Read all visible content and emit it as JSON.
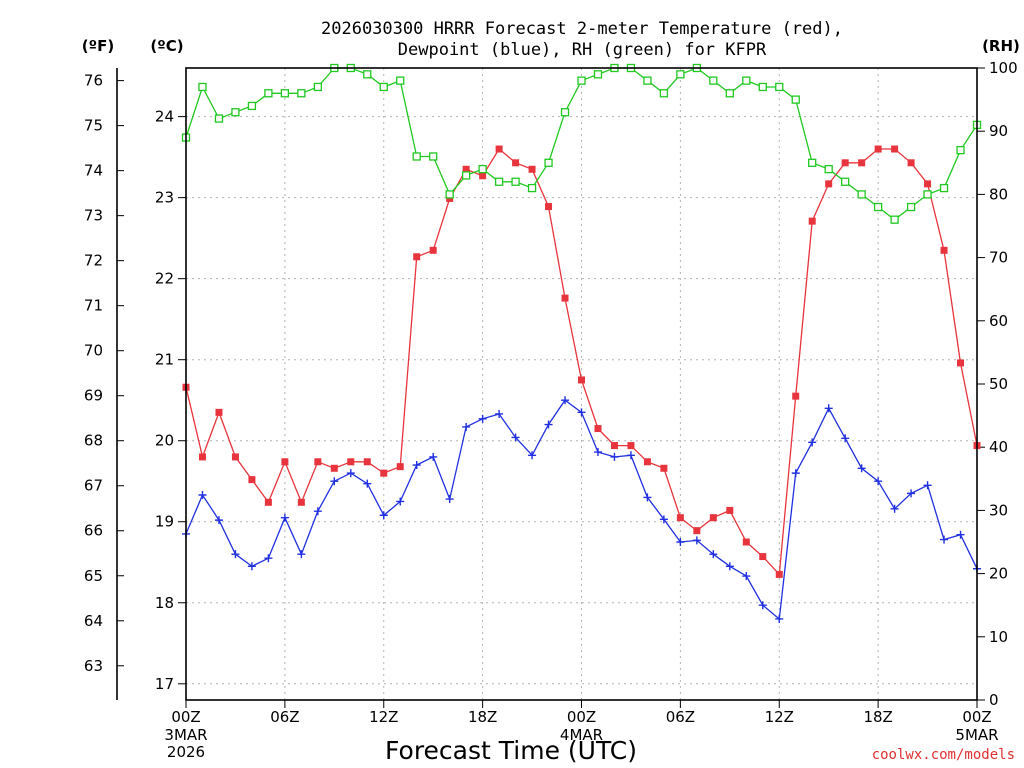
{
  "chart_data": {
    "type": "line",
    "title_line1": "2026030300 HRRR Forecast 2-meter Temperature (red),",
    "title_line2": "Dewpoint (blue), RH (green) for KFPR",
    "unit_f": "(ºF)",
    "unit_c": "(ºC)",
    "unit_rh": "(RH)",
    "xlabel": "Forecast Time (UTC)",
    "credit": "coolwx.com/models",
    "x_ticks": [
      {
        "h": 0,
        "label": "00Z",
        "sub": [
          "3MAR",
          "2026"
        ]
      },
      {
        "h": 6,
        "label": "06Z",
        "sub": []
      },
      {
        "h": 12,
        "label": "12Z",
        "sub": []
      },
      {
        "h": 18,
        "label": "18Z",
        "sub": []
      },
      {
        "h": 24,
        "label": "00Z",
        "sub": [
          "4MAR"
        ]
      },
      {
        "h": 30,
        "label": "06Z",
        "sub": []
      },
      {
        "h": 36,
        "label": "12Z",
        "sub": []
      },
      {
        "h": 42,
        "label": "18Z",
        "sub": []
      },
      {
        "h": 48,
        "label": "00Z",
        "sub": [
          "5MAR"
        ]
      }
    ],
    "xlim_hours": [
      0,
      48
    ],
    "y_celsius": {
      "range": [
        16.8,
        24.6
      ],
      "ticks": [
        "17",
        "18",
        "19",
        "20",
        "21",
        "22",
        "23",
        "24"
      ]
    },
    "y_fahrenheit": {
      "ticks": [
        "63",
        "64",
        "65",
        "66",
        "67",
        "68",
        "69",
        "70",
        "71",
        "72",
        "73",
        "74",
        "75",
        "76"
      ]
    },
    "y_rh": {
      "range": [
        0,
        100
      ],
      "ticks": [
        "0",
        "10",
        "20",
        "30",
        "40",
        "50",
        "60",
        "70",
        "80",
        "90",
        "100"
      ]
    },
    "grid": true,
    "series": [
      {
        "name": "2-meter Temperature (red)",
        "unit": "°C",
        "color": "#e8343c",
        "marker": "filled-square",
        "values": [
          20.66,
          19.8,
          20.35,
          19.8,
          19.52,
          19.24,
          19.74,
          19.24,
          19.74,
          19.66,
          19.74,
          19.74,
          19.6,
          19.68,
          22.27,
          22.35,
          22.99,
          23.35,
          23.27,
          23.6,
          23.43,
          23.35,
          22.89,
          21.76,
          20.75,
          20.15,
          19.94,
          19.94,
          19.74,
          19.66,
          19.05,
          18.89,
          19.05,
          19.14,
          18.75,
          18.57,
          18.35,
          20.55,
          22.71,
          23.17,
          23.43,
          23.43,
          23.6,
          23.6,
          23.43,
          23.17,
          22.35,
          20.96,
          19.94
        ]
      },
      {
        "name": "Dewpoint (blue)",
        "unit": "°C",
        "color": "#2030e0",
        "marker": "plus",
        "values": [
          18.85,
          19.33,
          19.02,
          18.6,
          18.45,
          18.55,
          19.05,
          18.6,
          19.13,
          19.5,
          19.6,
          19.47,
          19.08,
          19.25,
          19.7,
          19.8,
          19.28,
          20.17,
          20.27,
          20.33,
          20.04,
          19.82,
          20.2,
          20.5,
          20.35,
          19.86,
          19.8,
          19.82,
          19.3,
          19.03,
          18.75,
          18.77,
          18.6,
          18.45,
          18.33,
          17.97,
          17.8,
          19.6,
          19.98,
          20.4,
          20.03,
          19.66,
          19.5,
          19.16,
          19.35,
          19.45,
          18.78,
          18.84,
          18.42
        ]
      },
      {
        "name": "RH (green)",
        "unit": "%",
        "color": "#20c820",
        "marker": "open-square",
        "values": [
          89,
          97,
          92,
          93,
          94,
          96,
          96,
          96,
          97,
          100,
          100,
          99,
          97,
          98,
          86,
          86,
          80,
          83,
          84,
          82,
          82,
          81,
          85,
          93,
          98,
          99,
          100,
          100,
          98,
          96,
          99,
          100,
          98,
          96,
          98,
          97,
          97,
          95,
          85,
          84,
          82,
          80,
          78,
          76,
          78,
          80,
          81,
          87,
          91
        ]
      }
    ]
  }
}
